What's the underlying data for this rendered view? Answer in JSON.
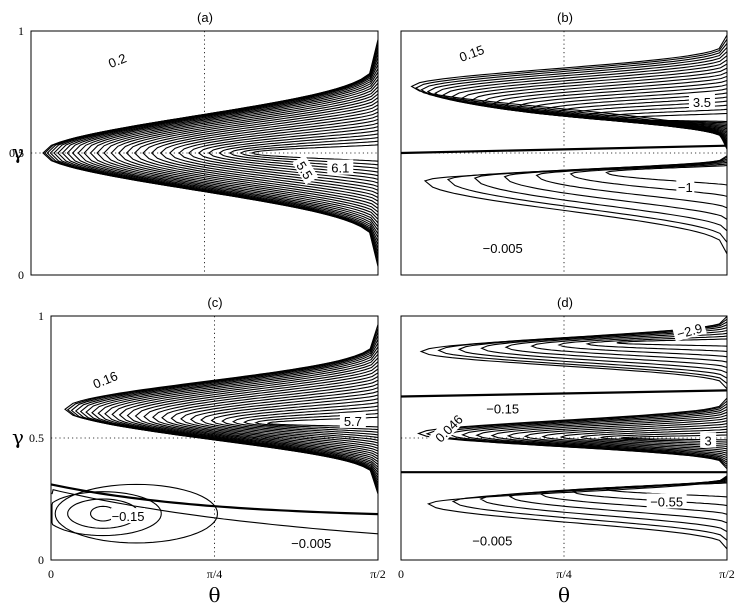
{
  "chart_data": [
    {
      "panel": "(a)",
      "type": "contour",
      "xlabel": "θ",
      "ylabel": "γ",
      "xlim": [
        0,
        1.5708
      ],
      "ylim": [
        0,
        1
      ],
      "x_ticks": [],
      "y_ticks": [
        "0",
        "0.5",
        "1"
      ],
      "contour_labels": [
        "0.2",
        "5.5",
        "6.1"
      ],
      "extremum": {
        "theta": 1.5708,
        "gamma": 0.5,
        "value": 6.1,
        "kind": "max"
      }
    },
    {
      "panel": "(b)",
      "type": "contour",
      "xlabel": "θ",
      "ylabel": "γ",
      "xlim": [
        0,
        1.5708
      ],
      "ylim": [
        0,
        1
      ],
      "x_ticks": [],
      "y_ticks": [],
      "zero_lines_gamma": [
        0.5
      ],
      "contour_labels": [
        "0.15",
        "3.5",
        "−1",
        "−0.005"
      ],
      "extrema": [
        {
          "theta": 1.5708,
          "gamma": 0.7,
          "value": 3.5,
          "kind": "max"
        },
        {
          "theta": 1.5708,
          "gamma": 0.42,
          "value": -1,
          "kind": "min"
        }
      ]
    },
    {
      "panel": "(c)",
      "type": "contour",
      "xlabel": "θ",
      "ylabel": "γ",
      "xlim": [
        0,
        1.5708
      ],
      "ylim": [
        0,
        1
      ],
      "x_ticks": [
        "0",
        "π/4",
        "π/2"
      ],
      "y_ticks": [
        "0",
        "0.5",
        "1"
      ],
      "zero_line_gamma": {
        "theta0": 0.31,
        "theta_pi_over_2": 0.17
      },
      "contour_labels": [
        "0.16",
        "5.7",
        "−0.15",
        "−0.005"
      ],
      "extrema": [
        {
          "theta": 1.5708,
          "gamma": 0.57,
          "value": 5.7,
          "kind": "max"
        },
        {
          "theta": 0.3,
          "gamma": 0.2,
          "value": -0.15,
          "kind": "min"
        }
      ]
    },
    {
      "panel": "(d)",
      "type": "contour",
      "xlabel": "θ",
      "ylabel": "γ",
      "xlim": [
        0,
        1.5708
      ],
      "ylim": [
        0,
        1
      ],
      "x_ticks": [
        "0",
        "π/4",
        "π/2"
      ],
      "y_ticks": [],
      "zero_lines_gamma": [
        0.68,
        0.36
      ],
      "contour_labels": [
        "−2.9",
        "−0.15",
        "0.046",
        "3",
        "−0.55",
        "−0.005"
      ],
      "extrema": [
        {
          "theta": 1.5708,
          "gamma": 0.9,
          "value": -2.9,
          "kind": "min"
        },
        {
          "theta": 1.5708,
          "gamma": 0.5,
          "value": 3,
          "kind": "max"
        },
        {
          "theta": 1.5708,
          "gamma": 0.3,
          "value": -0.55,
          "kind": "min"
        }
      ]
    }
  ]
}
